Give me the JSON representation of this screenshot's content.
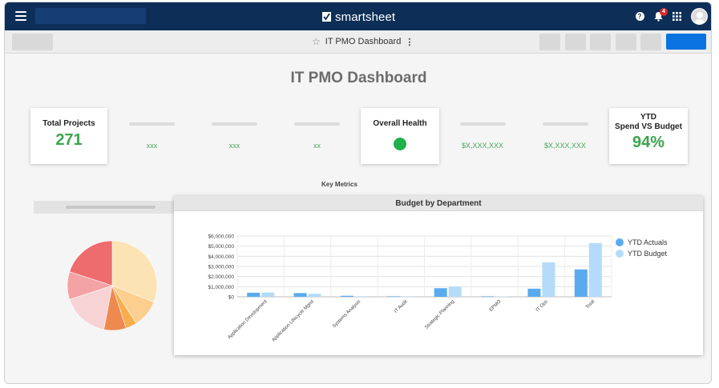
{
  "app": {
    "brand": "smartsheet",
    "notification_count": "4"
  },
  "toolbar": {
    "sheet_title": "IT PMO Dashboard",
    "kebab": "⋮",
    "star": "☆"
  },
  "dashboard": {
    "title": "IT PMO Dashboard",
    "cards": {
      "total_projects": {
        "title": "Total Projects",
        "value": "271"
      },
      "overall_health": {
        "title": "Overall Health",
        "status_color": "#20b14b"
      },
      "ytd": {
        "title_line1": "YTD",
        "title_line2": "Spend VS Budget",
        "value": "94%"
      }
    },
    "placeholders": [
      "xxx",
      "xxx",
      "xx",
      "$X,XXX,XXX",
      "$X,XXX,XXX"
    ],
    "key_metrics_label": "Key Metrics"
  },
  "pie_chart": {
    "slices": [
      {
        "color": "#fbe3b4",
        "value": 31
      },
      {
        "color": "#fccf90",
        "value": 10
      },
      {
        "color": "#f9ad4c",
        "value": 4
      },
      {
        "color": "#ee8a50",
        "value": 8
      },
      {
        "color": "#f8d3d6",
        "value": 17
      },
      {
        "color": "#f4a3a5",
        "value": 10
      },
      {
        "color": "#ee6c6e",
        "value": 20
      }
    ]
  },
  "chart_data": {
    "type": "bar",
    "title": "Budget by Department",
    "categories": [
      "Application Development",
      "Application Lifecycle Mgmt",
      "Systems Analysis",
      "IT Audit",
      "Strategic Planning",
      "EPMO",
      "IT Ops",
      "Total"
    ],
    "series": [
      {
        "name": "YTD Actuals",
        "color": "#5aabee",
        "values": [
          400000,
          370000,
          100000,
          50000,
          850000,
          50000,
          800000,
          2700000
        ]
      },
      {
        "name": "YTD Budget",
        "color": "#b4dbfa",
        "values": [
          420000,
          300000,
          50000,
          20000,
          1000000,
          40000,
          3400000,
          5300000
        ]
      }
    ],
    "ylim": [
      0,
      6000000
    ],
    "yticks": [
      "$0",
      "$1,000,000",
      "$2,000,000",
      "$3,000,000",
      "$4,000,000",
      "$5,000,000",
      "$6,000,000"
    ],
    "xlabel": "",
    "ylabel": "",
    "grid": true,
    "legend_position": "right"
  }
}
